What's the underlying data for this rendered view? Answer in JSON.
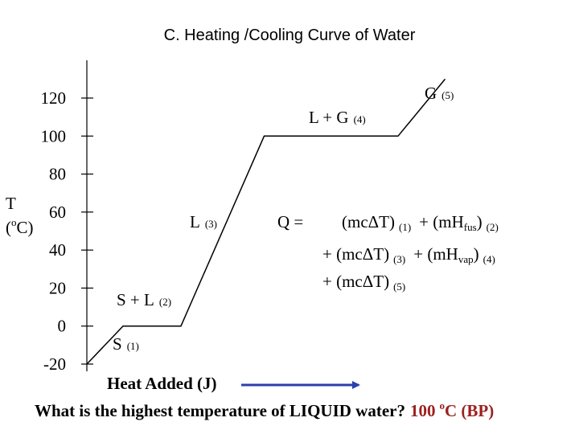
{
  "title": "C.  Heating /Cooling Curve of Water",
  "colors": {
    "axis": "#000000",
    "curve": "#000000",
    "arrow": "#2b3fae",
    "answer": "#9b2020"
  },
  "chart_data": {
    "type": "line",
    "title": "C.  Heating /Cooling Curve of Water",
    "ylabel": {
      "symbol": "T",
      "unit_open": "(",
      "unit_sup": "o",
      "unit_close": "C)"
    },
    "xlabel": "Heat Added (J)",
    "yticks": [
      "120",
      "100",
      "80",
      "60",
      "40",
      "20",
      "0",
      "-20"
    ],
    "ytick_values": [
      120,
      100,
      80,
      60,
      40,
      20,
      0,
      -20
    ],
    "ylim": [
      -20,
      120
    ],
    "grid": false,
    "series": [
      {
        "x": [
          0,
          1,
          2.6,
          4.9,
          8.6,
          9.9
        ],
        "y": [
          -20,
          0,
          0,
          100,
          100,
          130
        ]
      }
    ],
    "phase_labels": [
      {
        "main": "S",
        "sub": "(1)"
      },
      {
        "main": "S + L",
        "sub": "(2)"
      },
      {
        "main": "L",
        "sub": "(3)"
      },
      {
        "main": "L + G",
        "sub": "(4)"
      },
      {
        "main": "G",
        "sub": "(5)"
      }
    ]
  },
  "equation": {
    "line1": {
      "prefix": "Q =",
      "a": "(mcΔT)",
      "a_sub": "(1)",
      "b": "+ (mH",
      "b_sub": "fus",
      "b_close": ")",
      "b_idx": "(2)"
    },
    "line2": {
      "a": "+ (mcΔT)",
      "a_sub": "(3)",
      "b": "+ (mH",
      "b_sub": "vap",
      "b_close": ")",
      "b_idx": "(4)"
    },
    "line3": {
      "a": "+ (mcΔT)",
      "a_sub": "(5)"
    }
  },
  "question": {
    "text": "What is the highest temperature of LIQUID water?",
    "answer_num": "100",
    "answer_sup": "o",
    "answer_unit": "C (BP)"
  }
}
